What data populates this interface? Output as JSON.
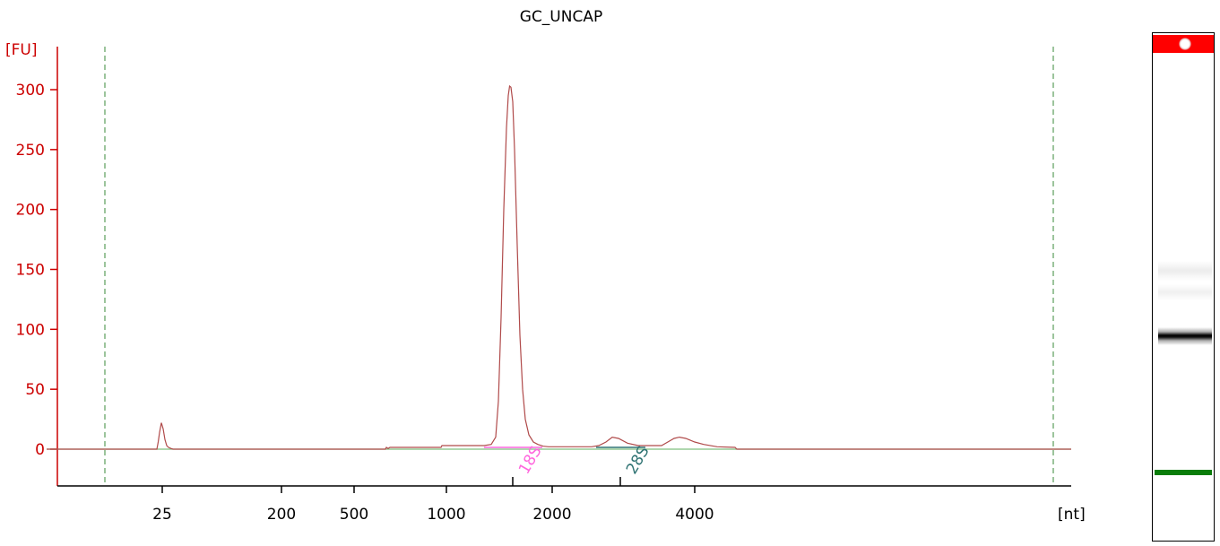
{
  "chart_data": {
    "type": "line",
    "title": "GC_UNCAP",
    "ylabel": "[FU]",
    "xlabel": "[nt]",
    "ylim": [
      -30,
      330
    ],
    "y_ticks": [
      0,
      50,
      100,
      150,
      200,
      250,
      300
    ],
    "x_tick_labels": [
      "25",
      "200",
      "500",
      "1000",
      "2000",
      "4000"
    ],
    "grid": false,
    "series": [
      {
        "color": "#b04a4a",
        "points": [
          [
            52,
            0
          ],
          [
            175,
            0
          ],
          [
            176.5,
            6
          ],
          [
            178,
            14
          ],
          [
            180,
            22
          ],
          [
            182,
            17
          ],
          [
            184,
            8
          ],
          [
            186,
            3
          ],
          [
            188,
            1.5
          ],
          [
            191,
            0.5
          ],
          [
            193,
            0
          ],
          [
            430,
            0
          ],
          [
            431,
            1.5
          ],
          [
            433,
            0.5
          ],
          [
            435,
            1.5
          ],
          [
            492,
            1.5
          ],
          [
            493,
            3
          ],
          [
            540,
            3
          ],
          [
            548,
            4
          ],
          [
            553,
            10
          ],
          [
            556,
            40
          ],
          [
            559,
            110
          ],
          [
            562,
            200
          ],
          [
            565,
            268
          ],
          [
            567,
            295
          ],
          [
            568.5,
            303
          ],
          [
            570,
            302
          ],
          [
            572,
            290
          ],
          [
            574,
            250
          ],
          [
            577,
            170
          ],
          [
            580,
            95
          ],
          [
            583,
            50
          ],
          [
            586,
            25
          ],
          [
            590,
            12
          ],
          [
            595,
            6
          ],
          [
            600,
            4
          ],
          [
            606,
            2.5
          ],
          [
            612,
            2
          ],
          [
            660,
            2
          ],
          [
            668,
            3
          ],
          [
            676,
            6
          ],
          [
            683,
            10
          ],
          [
            690,
            9
          ],
          [
            700,
            5
          ],
          [
            712,
            3
          ],
          [
            738,
            3
          ],
          [
            745,
            6
          ],
          [
            752,
            9
          ],
          [
            758,
            10
          ],
          [
            765,
            9
          ],
          [
            775,
            6
          ],
          [
            785,
            4
          ],
          [
            800,
            2
          ],
          [
            820,
            1.5
          ],
          [
            822,
            0
          ],
          [
            1195,
            0
          ]
        ]
      },
      {
        "color": "#7fbf7f",
        "points": [
          [
            52,
            0
          ],
          [
            1195,
            0
          ]
        ]
      }
    ],
    "peaks": [
      {
        "label": "18S",
        "color": "#ff66dd",
        "marker_x": 572
      },
      {
        "label": "28S",
        "color": "#2f7373",
        "marker_x": 692
      }
    ],
    "ladder_markers": {
      "color": "#3a8a3a",
      "style": "dashed"
    }
  },
  "gel_lane": {
    "marker_band_color": "#ff0000",
    "main_band_color": "#000000",
    "ladder_band_color": "#0a7d0a"
  }
}
